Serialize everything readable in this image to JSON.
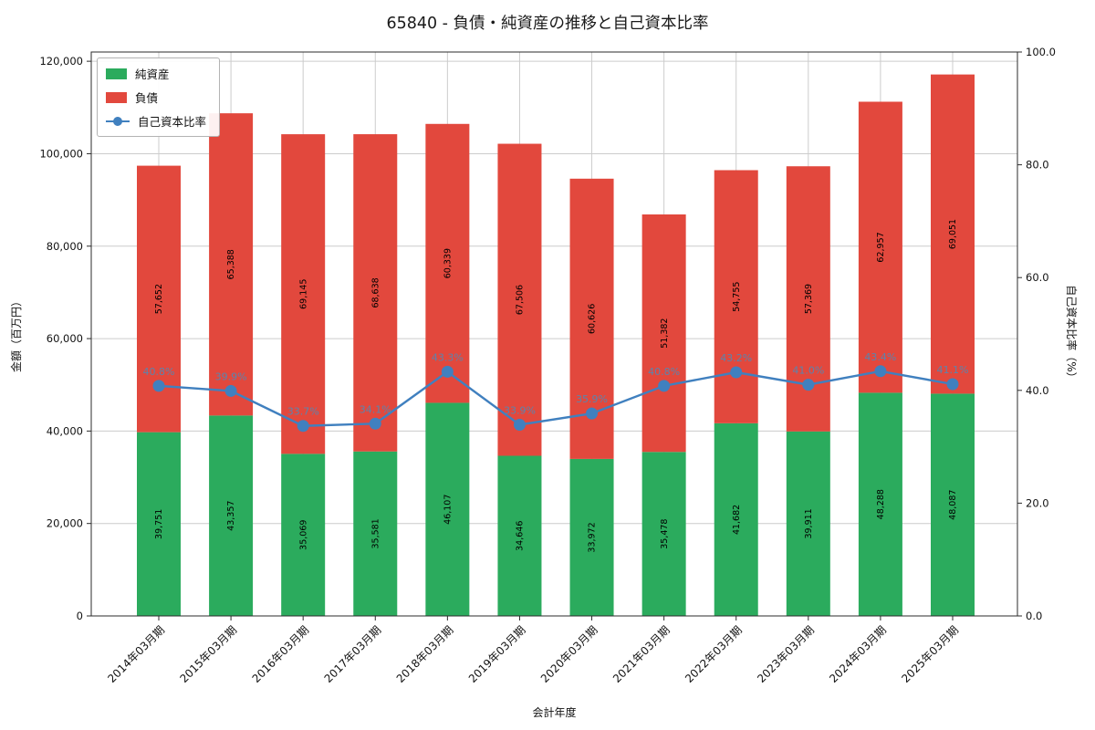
{
  "chart_data": {
    "type": "bar",
    "subtype": "stacked-bar-with-line",
    "title": "65840 - 負債・純資産の推移と自己資本比率",
    "xlabel": "会計年度",
    "ylabel_left": "金額（百万円）",
    "ylabel_right": "自己資本比率（%）",
    "categories": [
      "2014年03月期",
      "2015年03月期",
      "2016年03月期",
      "2017年03月期",
      "2018年03月期",
      "2019年03月期",
      "2020年03月期",
      "2021年03月期",
      "2022年03月期",
      "2023年03月期",
      "2024年03月期",
      "2025年03月期"
    ],
    "series": [
      {
        "name": "純資産",
        "type": "bar",
        "color": "#2bab5d",
        "values": [
          39751,
          43357,
          35069,
          35581,
          46107,
          34646,
          33972,
          35478,
          41682,
          39911,
          48288,
          48087
        ]
      },
      {
        "name": "負債",
        "type": "bar",
        "color": "#e2483d",
        "values": [
          57652,
          65388,
          69145,
          68638,
          60339,
          67506,
          60626,
          51382,
          54755,
          57369,
          62957,
          69051
        ]
      },
      {
        "name": "自己資本比率",
        "type": "line",
        "color": "#4080bf",
        "unit": "%",
        "values": [
          40.8,
          39.9,
          33.7,
          34.1,
          43.3,
          33.9,
          35.9,
          40.8,
          43.2,
          41.0,
          43.4,
          41.1
        ]
      }
    ],
    "left_axis": {
      "ticks": [
        0,
        20000,
        40000,
        60000,
        80000,
        100000,
        120000
      ],
      "max": 122000
    },
    "right_axis": {
      "ticks": [
        0,
        20,
        40,
        60,
        80,
        100
      ],
      "max": 100
    },
    "grid": true,
    "legend_position": "upper-left",
    "colors": {
      "grid": "#cccccc",
      "spine": "#2b2b2b",
      "bar_label": "#000000",
      "ratio_label": "#5b84ad",
      "tick_label": "#111111"
    }
  }
}
